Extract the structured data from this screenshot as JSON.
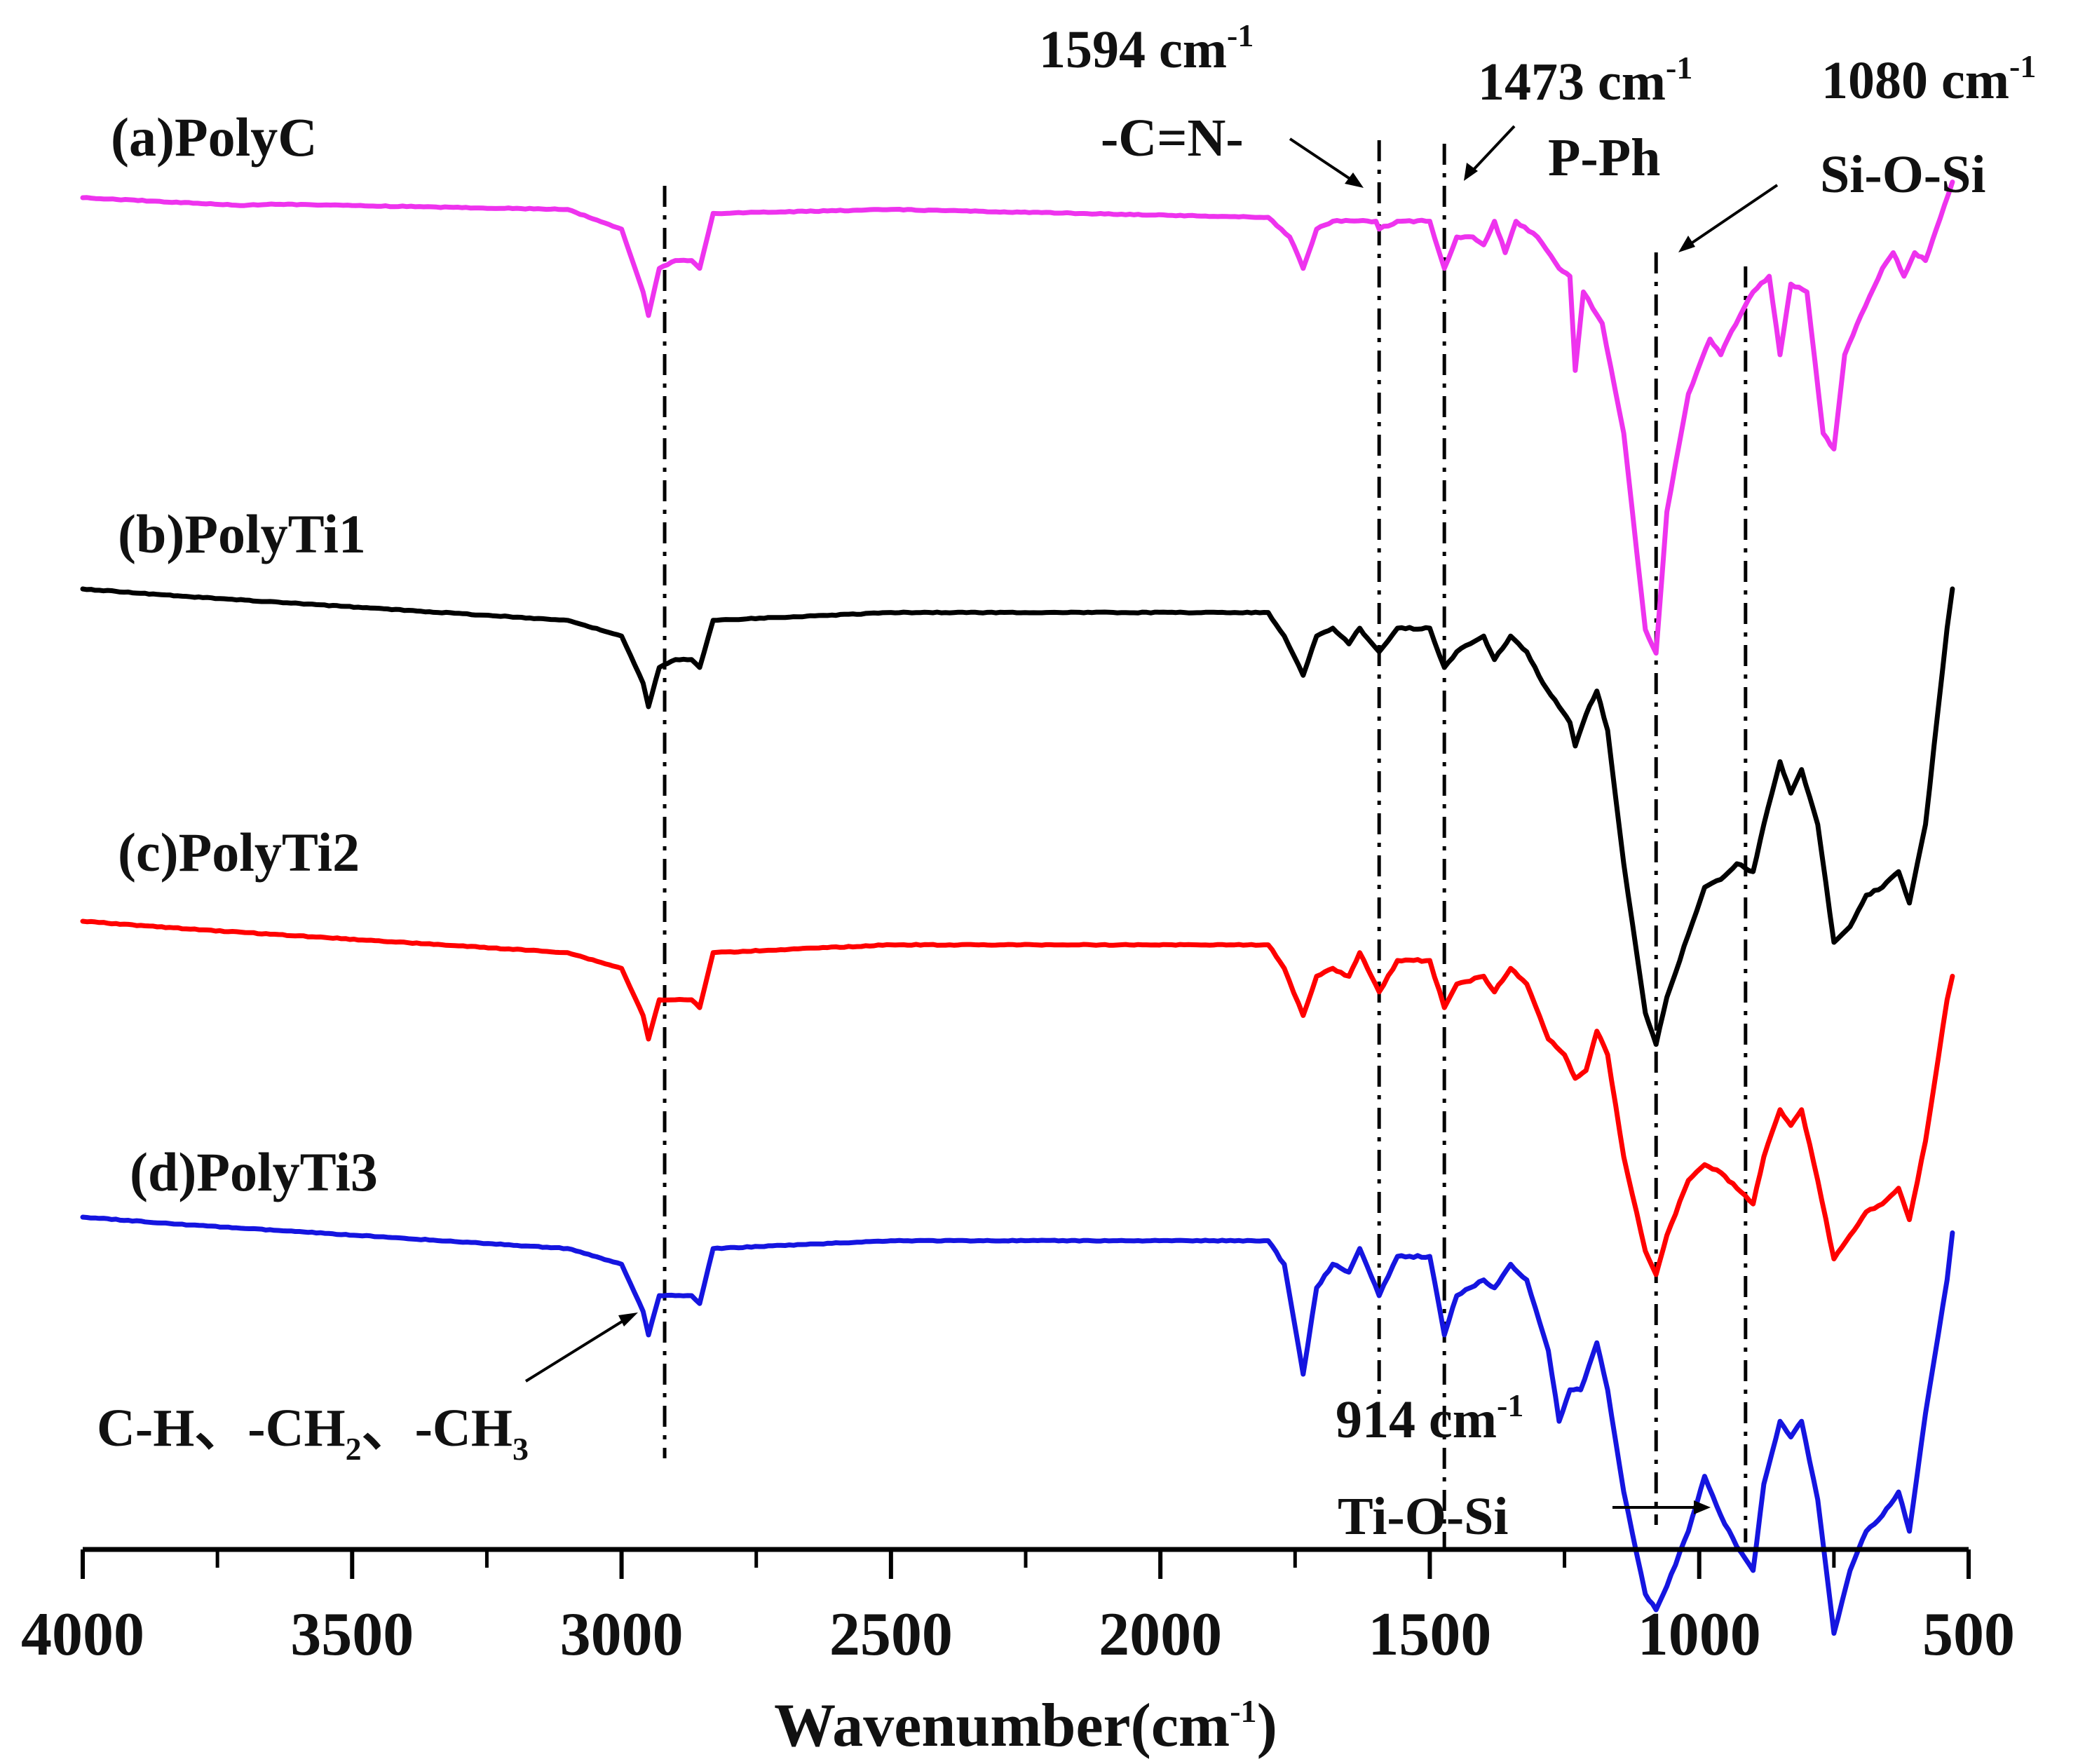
{
  "chart_data": {
    "type": "line",
    "title": "",
    "xlabel": "Wavenumber(cm-1)",
    "xlabel_parts": {
      "main": "Wavenumber(cm",
      "sup": "-1",
      "close": ")"
    },
    "ylabel": "",
    "xlim": [
      4000,
      500
    ],
    "x_ticks": [
      "4000",
      "3500",
      "3000",
      "2500",
      "2000",
      "1500",
      "1000",
      "500"
    ],
    "x_tick_values": [
      4000,
      3500,
      3000,
      2500,
      2000,
      1500,
      1000,
      500
    ],
    "grid": false,
    "legend": "none",
    "series": [
      {
        "name": "(a)PolyC",
        "color": "#ee33ee",
        "points": [
          [
            4000,
            0
          ],
          [
            3700,
            -1
          ],
          [
            3650,
            -0.8
          ],
          [
            3100,
            -1.5
          ],
          [
            3000,
            -4
          ],
          [
            2960,
            -12
          ],
          [
            2950,
            -15
          ],
          [
            2930,
            -9
          ],
          [
            2900,
            -8
          ],
          [
            2870,
            -8
          ],
          [
            2855,
            -9
          ],
          [
            2830,
            -2
          ],
          [
            2500,
            -1.5
          ],
          [
            1800,
            -2.5
          ],
          [
            1760,
            -5
          ],
          [
            1735,
            -9
          ],
          [
            1710,
            -4
          ],
          [
            1680,
            -3
          ],
          [
            1600,
            -3
          ],
          [
            1594,
            -4
          ],
          [
            1560,
            -3
          ],
          [
            1500,
            -3
          ],
          [
            1473,
            -9
          ],
          [
            1450,
            -5
          ],
          [
            1420,
            -5
          ],
          [
            1400,
            -6
          ],
          [
            1380,
            -3
          ],
          [
            1360,
            -7
          ],
          [
            1340,
            -3
          ],
          [
            1300,
            -5
          ],
          [
            1260,
            -9
          ],
          [
            1240,
            -10
          ],
          [
            1230,
            -22
          ],
          [
            1215,
            -12
          ],
          [
            1180,
            -16
          ],
          [
            1140,
            -30
          ],
          [
            1100,
            -55
          ],
          [
            1080,
            -58
          ],
          [
            1060,
            -40
          ],
          [
            1020,
            -25
          ],
          [
            980,
            -18
          ],
          [
            960,
            -20
          ],
          [
            940,
            -17
          ],
          [
            900,
            -12
          ],
          [
            870,
            -10
          ],
          [
            850,
            -20
          ],
          [
            830,
            -11
          ],
          [
            800,
            -12
          ],
          [
            770,
            -30
          ],
          [
            750,
            -32
          ],
          [
            730,
            -20
          ],
          [
            700,
            -15
          ],
          [
            660,
            -9
          ],
          [
            640,
            -7
          ],
          [
            620,
            -10
          ],
          [
            600,
            -7
          ],
          [
            580,
            -8
          ],
          [
            560,
            -4
          ],
          [
            530,
            2
          ]
        ]
      },
      {
        "name": "(b)PolyTi1",
        "color": "#000000",
        "points": [
          [
            4000,
            0
          ],
          [
            3800,
            -1
          ],
          [
            3100,
            -4
          ],
          [
            3000,
            -6
          ],
          [
            2960,
            -12
          ],
          [
            2950,
            -15
          ],
          [
            2930,
            -10
          ],
          [
            2900,
            -9
          ],
          [
            2870,
            -9
          ],
          [
            2855,
            -10
          ],
          [
            2830,
            -4
          ],
          [
            2500,
            -3
          ],
          [
            1800,
            -3
          ],
          [
            1770,
            -6
          ],
          [
            1735,
            -11
          ],
          [
            1710,
            -6
          ],
          [
            1680,
            -5
          ],
          [
            1650,
            -7
          ],
          [
            1630,
            -5
          ],
          [
            1594,
            -8
          ],
          [
            1560,
            -5
          ],
          [
            1500,
            -5
          ],
          [
            1473,
            -10
          ],
          [
            1450,
            -8
          ],
          [
            1400,
            -6
          ],
          [
            1380,
            -9
          ],
          [
            1350,
            -6
          ],
          [
            1320,
            -8
          ],
          [
            1290,
            -12
          ],
          [
            1260,
            -15
          ],
          [
            1240,
            -17
          ],
          [
            1230,
            -20
          ],
          [
            1210,
            -16
          ],
          [
            1190,
            -13
          ],
          [
            1170,
            -18
          ],
          [
            1140,
            -35
          ],
          [
            1100,
            -54
          ],
          [
            1080,
            -58
          ],
          [
            1060,
            -52
          ],
          [
            1020,
            -44
          ],
          [
            990,
            -38
          ],
          [
            960,
            -37
          ],
          [
            930,
            -35
          ],
          [
            900,
            -36
          ],
          [
            880,
            -30
          ],
          [
            850,
            -22
          ],
          [
            830,
            -26
          ],
          [
            810,
            -23
          ],
          [
            780,
            -30
          ],
          [
            750,
            -45
          ],
          [
            720,
            -43
          ],
          [
            690,
            -39
          ],
          [
            660,
            -38
          ],
          [
            630,
            -36
          ],
          [
            610,
            -40
          ],
          [
            580,
            -30
          ],
          [
            540,
            -5
          ],
          [
            530,
            0
          ]
        ]
      },
      {
        "name": "(c)PolyTi2",
        "color": "#ff0000",
        "points": [
          [
            4000,
            0
          ],
          [
            3800,
            -1
          ],
          [
            3100,
            -4
          ],
          [
            3000,
            -6
          ],
          [
            2960,
            -12
          ],
          [
            2950,
            -15
          ],
          [
            2930,
            -10
          ],
          [
            2900,
            -10
          ],
          [
            2870,
            -10
          ],
          [
            2855,
            -11
          ],
          [
            2830,
            -4
          ],
          [
            2500,
            -3
          ],
          [
            1800,
            -3
          ],
          [
            1770,
            -6
          ],
          [
            1735,
            -12
          ],
          [
            1710,
            -7
          ],
          [
            1680,
            -6
          ],
          [
            1650,
            -7
          ],
          [
            1630,
            -4
          ],
          [
            1594,
            -9
          ],
          [
            1560,
            -5
          ],
          [
            1500,
            -5
          ],
          [
            1473,
            -11
          ],
          [
            1450,
            -8
          ],
          [
            1400,
            -7
          ],
          [
            1380,
            -9
          ],
          [
            1350,
            -6
          ],
          [
            1320,
            -8
          ],
          [
            1280,
            -15
          ],
          [
            1250,
            -17
          ],
          [
            1230,
            -20
          ],
          [
            1210,
            -19
          ],
          [
            1190,
            -14
          ],
          [
            1170,
            -17
          ],
          [
            1140,
            -30
          ],
          [
            1100,
            -42
          ],
          [
            1080,
            -45
          ],
          [
            1060,
            -40
          ],
          [
            1020,
            -33
          ],
          [
            990,
            -31
          ],
          [
            960,
            -32
          ],
          [
            930,
            -34
          ],
          [
            900,
            -36
          ],
          [
            880,
            -30
          ],
          [
            850,
            -24
          ],
          [
            830,
            -26
          ],
          [
            810,
            -24
          ],
          [
            780,
            -33
          ],
          [
            750,
            -43
          ],
          [
            720,
            -40
          ],
          [
            690,
            -37
          ],
          [
            660,
            -36
          ],
          [
            630,
            -34
          ],
          [
            610,
            -38
          ],
          [
            580,
            -28
          ],
          [
            540,
            -10
          ],
          [
            530,
            -7
          ]
        ]
      },
      {
        "name": "(d)PolyTi3",
        "color": "#1515e0",
        "points": [
          [
            4000,
            0
          ],
          [
            3800,
            -1
          ],
          [
            3100,
            -4
          ],
          [
            3000,
            -6
          ],
          [
            2960,
            -12
          ],
          [
            2950,
            -15
          ],
          [
            2930,
            -10
          ],
          [
            2900,
            -10
          ],
          [
            2870,
            -10
          ],
          [
            2855,
            -11
          ],
          [
            2830,
            -4
          ],
          [
            2500,
            -3
          ],
          [
            1800,
            -3
          ],
          [
            1770,
            -6
          ],
          [
            1735,
            -20
          ],
          [
            1710,
            -9
          ],
          [
            1680,
            -6
          ],
          [
            1650,
            -7
          ],
          [
            1630,
            -4
          ],
          [
            1594,
            -10
          ],
          [
            1560,
            -5
          ],
          [
            1500,
            -5
          ],
          [
            1473,
            -15
          ],
          [
            1450,
            -10
          ],
          [
            1400,
            -8
          ],
          [
            1380,
            -9
          ],
          [
            1350,
            -6
          ],
          [
            1320,
            -8
          ],
          [
            1280,
            -17
          ],
          [
            1260,
            -26
          ],
          [
            1240,
            -22
          ],
          [
            1220,
            -22
          ],
          [
            1190,
            -16
          ],
          [
            1170,
            -22
          ],
          [
            1140,
            -35
          ],
          [
            1100,
            -48
          ],
          [
            1080,
            -50
          ],
          [
            1060,
            -47
          ],
          [
            1020,
            -40
          ],
          [
            990,
            -33
          ],
          [
            960,
            -38
          ],
          [
            930,
            -42
          ],
          [
            900,
            -45
          ],
          [
            880,
            -34
          ],
          [
            850,
            -26
          ],
          [
            830,
            -28
          ],
          [
            810,
            -26
          ],
          [
            780,
            -36
          ],
          [
            750,
            -53
          ],
          [
            720,
            -45
          ],
          [
            690,
            -40
          ],
          [
            660,
            -38
          ],
          [
            630,
            -35
          ],
          [
            610,
            -40
          ],
          [
            580,
            -25
          ],
          [
            540,
            -8
          ],
          [
            530,
            -2
          ]
        ]
      }
    ],
    "reference_lines": [
      {
        "x": 2920,
        "label": "C-H",
        "style": "dash-dot"
      },
      {
        "x": 1594,
        "label": "-C=N-",
        "style": "dash-dot"
      },
      {
        "x": 1473,
        "label": "P-Ph",
        "style": "dash-dot"
      },
      {
        "x": 1080,
        "label": "Si-O-Si",
        "style": "dash-dot"
      },
      {
        "x": 914,
        "label": "Ti-O-Si",
        "style": "dash-dot"
      }
    ],
    "annotations": [
      {
        "id": "cn",
        "wavenumber": "1594 cm",
        "sup": "-1",
        "group": "-C=N-"
      },
      {
        "id": "pph",
        "wavenumber": "1473 cm",
        "sup": "-1",
        "group": "P-Ph"
      },
      {
        "id": "siosi",
        "wavenumber": "1080 cm",
        "sup": "-1",
        "group": "Si-O-Si"
      },
      {
        "id": "tiosi",
        "wavenumber": "914 cm",
        "sup": "-1",
        "group": "Ti-O-Si"
      }
    ],
    "ch_label": {
      "p1": "C-H、-CH",
      "s1": "2",
      "p2": "、-CH",
      "s2": "3"
    }
  }
}
